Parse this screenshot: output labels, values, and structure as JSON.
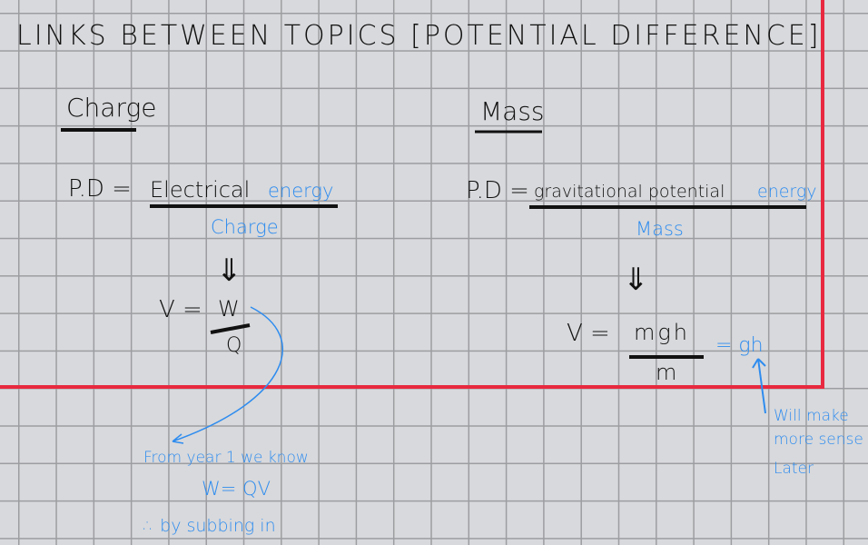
{
  "title": "LINKS BETWEEN TOPICS [POTENTIAL DIFFERENCE]",
  "colors": {
    "ink": "#111111",
    "annotation": "#2e8cef",
    "box": "#e8293f",
    "grid": "#9c9da0",
    "paper": "#d8d9dc"
  },
  "left": {
    "heading": "Charge",
    "pd_label": "P.D =",
    "numerator_black": "Electrical",
    "numerator_blue": "energy",
    "denominator": "Charge",
    "implies": "⇓",
    "v_label": "V =",
    "v_numerator": "W",
    "v_denominator": "Q",
    "note_line1": "From year 1 we know",
    "note_line2": "W= QV",
    "note_line3": "∴ by subbing in"
  },
  "right": {
    "heading": "Mass",
    "pd_label": "P.D =",
    "numerator_black": "gravitational potential",
    "numerator_blue": "energy",
    "denominator": "Mass",
    "implies": "⇓",
    "v_label": "V =",
    "v_numerator": "mgh",
    "v_denominator": "m",
    "simplified": "= gh",
    "note_line1": "Will make",
    "note_line2": "more sense",
    "note_line3": "Later"
  }
}
